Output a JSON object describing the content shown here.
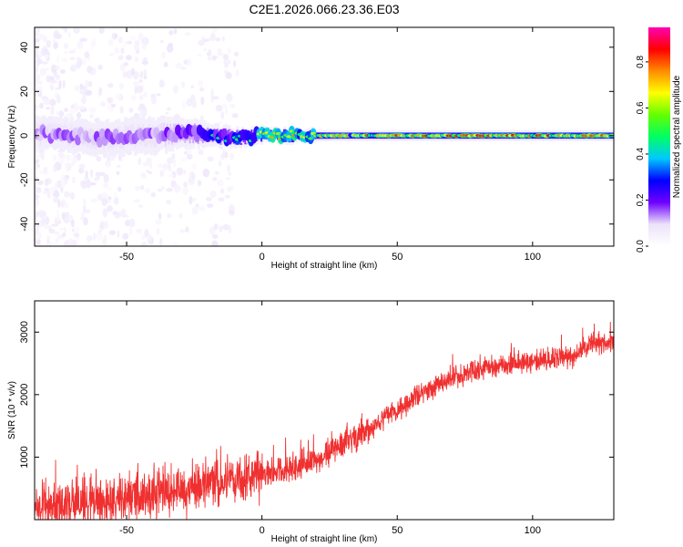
{
  "title": "C2E1.2026.066.23.36.E03",
  "chart_data": [
    {
      "type": "heatmap",
      "title": "C2E1.2026.066.23.36.E03",
      "xlabel": "Height of straight line (km)",
      "ylabel": "Frequency (Hz)",
      "xlim": [
        -84,
        130
      ],
      "ylim": [
        -50,
        49
      ],
      "xticks": [
        -50,
        0,
        50,
        100
      ],
      "yticks": [
        -40,
        -20,
        0,
        20,
        40
      ],
      "grid": false,
      "colorbar": {
        "label": "Normalized spectral amplitude",
        "range": [
          0,
          0.95
        ],
        "ticks": [
          0.0,
          0.2,
          0.4,
          0.6,
          0.8
        ],
        "colors": [
          "#ffffff",
          "#ece2fa",
          "#6e00ff",
          "#0000ff",
          "#00c8ff",
          "#00ff64",
          "#64ff00",
          "#ffff00",
          "#ff8c00",
          "#ff0000",
          "#ff00b4"
        ]
      },
      "band_center_hz": [
        {
          "x": -80,
          "f": 1
        },
        {
          "x": -60,
          "f": -1
        },
        {
          "x": -40,
          "f": 0
        },
        {
          "x": -25,
          "f": 1
        },
        {
          "x": -10,
          "f": -1
        },
        {
          "x": 0,
          "f": 0
        },
        {
          "x": 20,
          "f": 0
        },
        {
          "x": 60,
          "f": 0
        },
        {
          "x": 130,
          "f": 0
        }
      ],
      "band_halfwidth_hz": [
        {
          "x": -80,
          "w": 7
        },
        {
          "x": -40,
          "w": 8
        },
        {
          "x": -20,
          "w": 5
        },
        {
          "x": 0,
          "w": 3
        },
        {
          "x": 30,
          "w": 2.5
        },
        {
          "x": 130,
          "w": 2.5
        }
      ],
      "peak_amplitude": [
        {
          "x": -80,
          "a": 0.28
        },
        {
          "x": -40,
          "a": 0.3
        },
        {
          "x": -20,
          "a": 0.45
        },
        {
          "x": -5,
          "a": 0.6
        },
        {
          "x": 0,
          "a": 0.8
        },
        {
          "x": 20,
          "a": 0.75
        },
        {
          "x": 50,
          "a": 0.85
        },
        {
          "x": 80,
          "a": 0.9
        },
        {
          "x": 130,
          "a": 0.9
        }
      ]
    },
    {
      "type": "line",
      "xlabel": "Height of straight line (km)",
      "ylabel": "SNR (10 * v/v)",
      "xlim": [
        -84,
        130
      ],
      "ylim": [
        0,
        3500
      ],
      "xticks": [
        -50,
        0,
        50,
        100
      ],
      "yticks": [
        1000,
        2000,
        3000
      ],
      "grid": false,
      "series": [
        {
          "name": "SNR",
          "color": "#f03030",
          "trend": [
            {
              "x": -84,
              "y": 200
            },
            {
              "x": -60,
              "y": 300
            },
            {
              "x": -40,
              "y": 380
            },
            {
              "x": -20,
              "y": 550
            },
            {
              "x": 0,
              "y": 700
            },
            {
              "x": 20,
              "y": 950
            },
            {
              "x": 30,
              "y": 1200
            },
            {
              "x": 40,
              "y": 1450
            },
            {
              "x": 50,
              "y": 1750
            },
            {
              "x": 60,
              "y": 2050
            },
            {
              "x": 70,
              "y": 2250
            },
            {
              "x": 80,
              "y": 2400
            },
            {
              "x": 100,
              "y": 2550
            },
            {
              "x": 115,
              "y": 2600
            },
            {
              "x": 122,
              "y": 2850
            },
            {
              "x": 130,
              "y": 2800
            }
          ]
        }
      ]
    }
  ]
}
